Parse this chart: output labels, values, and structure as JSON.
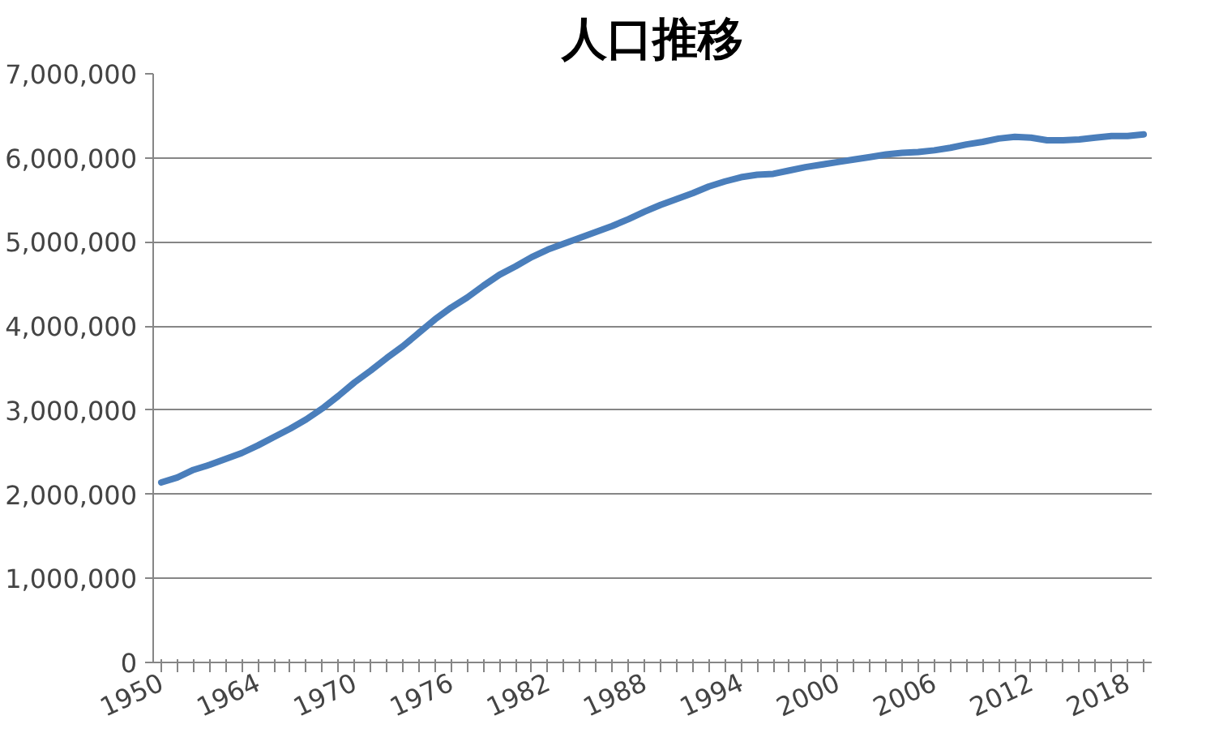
{
  "chart_data": {
    "type": "line",
    "title": "人口推移",
    "categories": [
      "1950",
      null,
      null,
      null,
      null,
      null,
      "1964",
      null,
      null,
      null,
      null,
      null,
      "1970",
      null,
      null,
      null,
      null,
      null,
      "1976",
      null,
      null,
      null,
      null,
      null,
      "1982",
      null,
      null,
      null,
      null,
      null,
      "1988",
      null,
      null,
      null,
      null,
      null,
      "1994",
      null,
      null,
      null,
      null,
      null,
      "2000",
      null,
      null,
      null,
      null,
      null,
      "2006",
      null,
      null,
      null,
      null,
      null,
      "2012",
      null,
      null,
      null,
      null,
      null,
      "2018",
      null
    ],
    "series": [
      {
        "color": "#4a7ebb",
        "values": [
          2140000,
          2200000,
          2290000,
          2350000,
          2420000,
          2490000,
          2580000,
          2680000,
          2780000,
          2890000,
          3020000,
          3170000,
          3330000,
          3470000,
          3620000,
          3760000,
          3920000,
          4080000,
          4220000,
          4340000,
          4480000,
          4610000,
          4710000,
          4820000,
          4910000,
          4980000,
          5050000,
          5120000,
          5190000,
          5270000,
          5360000,
          5440000,
          5510000,
          5580000,
          5660000,
          5720000,
          5770000,
          5800000,
          5810000,
          5850000,
          5890000,
          5920000,
          5950000,
          5980000,
          6010000,
          6040000,
          6060000,
          6070000,
          6090000,
          6120000,
          6160000,
          6190000,
          6230000,
          6250000,
          6240000,
          6210000,
          6210000,
          6220000,
          6240000,
          6260000,
          6260000,
          6280000
        ]
      }
    ],
    "ylim": [
      0,
      7000000
    ],
    "yticks": [
      0,
      {
        "value": 1000000,
        "label": "1,000,000"
      },
      {
        "value": 2000000,
        "label": "2,000,000"
      },
      {
        "value": 3000000,
        "label": "3,000,000"
      },
      {
        "value": 4000000,
        "label": "4,000,000"
      },
      {
        "value": 5000000,
        "label": "5,000,000"
      },
      {
        "value": 6000000,
        "label": "6,000,000"
      },
      {
        "value": 7000000,
        "label": "7,000,000"
      }
    ],
    "grid": "y",
    "marker": "none",
    "line_style": "solid"
  }
}
